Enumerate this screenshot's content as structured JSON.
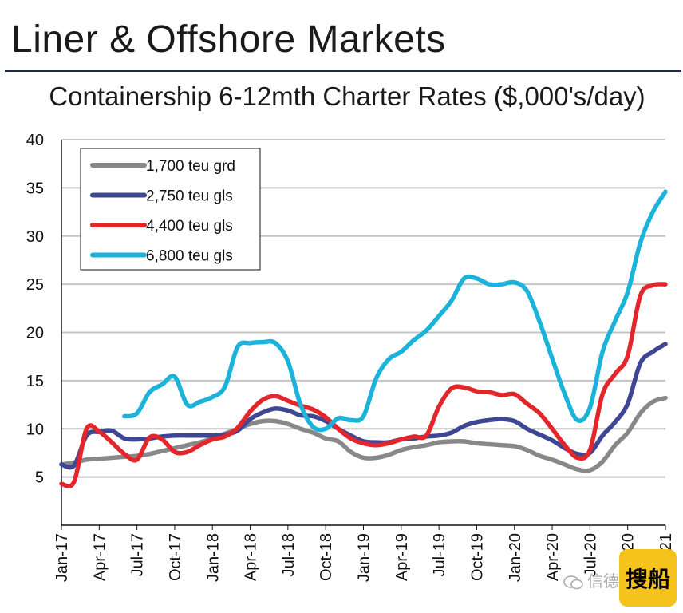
{
  "header": {
    "title": "Liner & Offshore Markets"
  },
  "chart_data": {
    "type": "line",
    "title": "Containership 6-12mth Charter Rates ($,000's/day)",
    "xlabel": "",
    "ylabel": "",
    "ylim": [
      0,
      40
    ],
    "yticks": [
      5,
      10,
      15,
      20,
      25,
      30,
      35,
      40
    ],
    "x_range_months": [
      "Jan-17",
      "Jan-21"
    ],
    "xtick_labels": [
      "Jan-17",
      "Apr-17",
      "Jul-17",
      "Oct-17",
      "Jan-18",
      "Apr-18",
      "Jul-18",
      "Oct-18",
      "Jan-19",
      "Apr-19",
      "Jul-19",
      "Oct-19",
      "Jan-20",
      "Apr-20",
      "Jul-20",
      "Oct-20",
      "Jan-21"
    ],
    "grid": true,
    "legend_position": "top-left",
    "series": [
      {
        "name": "1,700 teu grd",
        "color": "#888888",
        "points": [
          [
            "Jan-17",
            6.3
          ],
          [
            "Feb-17",
            6.5
          ],
          [
            "Mar-17",
            6.8
          ],
          [
            "Apr-17",
            6.9
          ],
          [
            "May-17",
            7.0
          ],
          [
            "Jun-17",
            7.1
          ],
          [
            "Jul-17",
            7.2
          ],
          [
            "Aug-17",
            7.4
          ],
          [
            "Sep-17",
            7.7
          ],
          [
            "Oct-17",
            8.0
          ],
          [
            "Nov-17",
            8.3
          ],
          [
            "Dec-17",
            8.6
          ],
          [
            "Jan-18",
            9.0
          ],
          [
            "Feb-18",
            9.5
          ],
          [
            "Mar-18",
            10.0
          ],
          [
            "Apr-18",
            10.5
          ],
          [
            "May-18",
            10.8
          ],
          [
            "Jun-18",
            10.8
          ],
          [
            "Jul-18",
            10.5
          ],
          [
            "Aug-18",
            10.0
          ],
          [
            "Sep-18",
            9.6
          ],
          [
            "Oct-18",
            9.0
          ],
          [
            "Nov-18",
            8.7
          ],
          [
            "Dec-18",
            7.6
          ],
          [
            "Jan-19",
            7.0
          ],
          [
            "Feb-19",
            7.0
          ],
          [
            "Mar-19",
            7.3
          ],
          [
            "Apr-19",
            7.8
          ],
          [
            "May-19",
            8.1
          ],
          [
            "Jun-19",
            8.3
          ],
          [
            "Jul-19",
            8.6
          ],
          [
            "Aug-19",
            8.7
          ],
          [
            "Sep-19",
            8.7
          ],
          [
            "Oct-19",
            8.5
          ],
          [
            "Nov-19",
            8.4
          ],
          [
            "Dec-19",
            8.3
          ],
          [
            "Jan-20",
            8.2
          ],
          [
            "Feb-20",
            7.8
          ],
          [
            "Mar-20",
            7.2
          ],
          [
            "Apr-20",
            6.8
          ],
          [
            "May-20",
            6.3
          ],
          [
            "Jun-20",
            5.8
          ],
          [
            "Jul-20",
            5.7
          ],
          [
            "Aug-20",
            6.6
          ],
          [
            "Sep-20",
            8.3
          ],
          [
            "Oct-20",
            9.6
          ],
          [
            "Nov-20",
            11.6
          ],
          [
            "Dec-20",
            12.8
          ],
          [
            "Jan-21",
            13.2
          ]
        ]
      },
      {
        "name": "2,750 teu gls",
        "color": "#3d4794",
        "points": [
          [
            "Jan-17",
            6.3
          ],
          [
            "Feb-17",
            6.2
          ],
          [
            "Mar-17",
            9.3
          ],
          [
            "Apr-17",
            9.7
          ],
          [
            "May-17",
            9.8
          ],
          [
            "Jun-17",
            9.0
          ],
          [
            "Jul-17",
            8.9
          ],
          [
            "Aug-17",
            9.0
          ],
          [
            "Sep-17",
            9.2
          ],
          [
            "Oct-17",
            9.3
          ],
          [
            "Nov-17",
            9.3
          ],
          [
            "Dec-17",
            9.3
          ],
          [
            "Jan-18",
            9.3
          ],
          [
            "Feb-18",
            9.4
          ],
          [
            "Mar-18",
            9.8
          ],
          [
            "Apr-18",
            11.0
          ],
          [
            "May-18",
            11.7
          ],
          [
            "Jun-18",
            12.1
          ],
          [
            "Jul-18",
            11.9
          ],
          [
            "Aug-18",
            11.4
          ],
          [
            "Sep-18",
            11.3
          ],
          [
            "Oct-18",
            10.8
          ],
          [
            "Nov-18",
            10.0
          ],
          [
            "Dec-18",
            9.3
          ],
          [
            "Jan-19",
            8.7
          ],
          [
            "Feb-19",
            8.6
          ],
          [
            "Mar-19",
            8.6
          ],
          [
            "Apr-19",
            8.9
          ],
          [
            "May-19",
            9.0
          ],
          [
            "Jun-19",
            9.2
          ],
          [
            "Jul-19",
            9.3
          ],
          [
            "Aug-19",
            9.6
          ],
          [
            "Sep-19",
            10.3
          ],
          [
            "Oct-19",
            10.7
          ],
          [
            "Nov-19",
            10.9
          ],
          [
            "Dec-19",
            11.0
          ],
          [
            "Jan-20",
            10.8
          ],
          [
            "Feb-20",
            10.0
          ],
          [
            "Mar-20",
            9.4
          ],
          [
            "Apr-20",
            8.8
          ],
          [
            "May-20",
            8.0
          ],
          [
            "Jun-20",
            7.4
          ],
          [
            "Jul-20",
            7.5
          ],
          [
            "Aug-20",
            9.3
          ],
          [
            "Sep-20",
            10.7
          ],
          [
            "Oct-20",
            12.6
          ],
          [
            "Nov-20",
            16.8
          ],
          [
            "Dec-20",
            18.0
          ],
          [
            "Jan-21",
            18.8
          ]
        ]
      },
      {
        "name": "4,400 teu gls",
        "color": "#e3262b",
        "points": [
          [
            "Jan-17",
            4.3
          ],
          [
            "Feb-17",
            4.5
          ],
          [
            "Mar-17",
            10.0
          ],
          [
            "Apr-17",
            9.7
          ],
          [
            "May-17",
            8.6
          ],
          [
            "Jun-17",
            7.4
          ],
          [
            "Jul-17",
            6.8
          ],
          [
            "Aug-17",
            9.1
          ],
          [
            "Sep-17",
            8.9
          ],
          [
            "Oct-17",
            7.6
          ],
          [
            "Nov-17",
            7.6
          ],
          [
            "Dec-17",
            8.3
          ],
          [
            "Jan-18",
            8.9
          ],
          [
            "Feb-18",
            9.2
          ],
          [
            "Mar-18",
            10.1
          ],
          [
            "Apr-18",
            11.8
          ],
          [
            "May-18",
            13.0
          ],
          [
            "Jun-18",
            13.4
          ],
          [
            "Jul-18",
            12.9
          ],
          [
            "Aug-18",
            12.4
          ],
          [
            "Sep-18",
            12.0
          ],
          [
            "Oct-18",
            11.2
          ],
          [
            "Nov-18",
            10.0
          ],
          [
            "Dec-18",
            9.0
          ],
          [
            "Jan-19",
            8.5
          ],
          [
            "Feb-19",
            8.3
          ],
          [
            "Mar-19",
            8.5
          ],
          [
            "Apr-19",
            8.9
          ],
          [
            "May-19",
            9.2
          ],
          [
            "Jun-19",
            9.3
          ],
          [
            "Jul-19",
            12.3
          ],
          [
            "Aug-19",
            14.2
          ],
          [
            "Sep-19",
            14.3
          ],
          [
            "Oct-19",
            13.9
          ],
          [
            "Nov-19",
            13.8
          ],
          [
            "Dec-19",
            13.5
          ],
          [
            "Jan-20",
            13.6
          ],
          [
            "Feb-20",
            12.6
          ],
          [
            "Mar-20",
            11.6
          ],
          [
            "Apr-20",
            10.0
          ],
          [
            "May-20",
            8.3
          ],
          [
            "Jun-20",
            7.0
          ],
          [
            "Jul-20",
            7.8
          ],
          [
            "Aug-20",
            13.6
          ],
          [
            "Sep-20",
            15.7
          ],
          [
            "Oct-20",
            17.6
          ],
          [
            "Nov-20",
            23.8
          ],
          [
            "Dec-20",
            24.9
          ],
          [
            "Jan-21",
            25.0
          ]
        ]
      },
      {
        "name": "6,800 teu gls",
        "color": "#1bb3d9",
        "points": [
          [
            "Jun-17",
            11.3
          ],
          [
            "Jul-17",
            11.6
          ],
          [
            "Aug-17",
            13.8
          ],
          [
            "Sep-17",
            14.6
          ],
          [
            "Oct-17",
            15.4
          ],
          [
            "Nov-17",
            12.5
          ],
          [
            "Dec-17",
            12.8
          ],
          [
            "Jan-18",
            13.3
          ],
          [
            "Feb-18",
            14.4
          ],
          [
            "Mar-18",
            18.5
          ],
          [
            "Apr-18",
            18.9
          ],
          [
            "May-18",
            19.0
          ],
          [
            "Jun-18",
            18.9
          ],
          [
            "Jul-18",
            17.0
          ],
          [
            "Aug-18",
            12.5
          ],
          [
            "Sep-18",
            10.2
          ],
          [
            "Oct-18",
            10.0
          ],
          [
            "Nov-18",
            11.1
          ],
          [
            "Dec-18",
            10.9
          ],
          [
            "Jan-19",
            11.3
          ],
          [
            "Feb-19",
            15.2
          ],
          [
            "Mar-19",
            17.2
          ],
          [
            "Apr-19",
            18.0
          ],
          [
            "May-19",
            19.2
          ],
          [
            "Jun-19",
            20.2
          ],
          [
            "Jul-19",
            21.7
          ],
          [
            "Aug-19",
            23.3
          ],
          [
            "Sep-19",
            25.6
          ],
          [
            "Oct-19",
            25.6
          ],
          [
            "Nov-19",
            25.0
          ],
          [
            "Dec-19",
            25.0
          ],
          [
            "Jan-20",
            25.2
          ],
          [
            "Feb-20",
            24.3
          ],
          [
            "Mar-20",
            21.1
          ],
          [
            "Apr-20",
            17.3
          ],
          [
            "May-20",
            13.6
          ],
          [
            "Jun-20",
            10.9
          ],
          [
            "Jul-20",
            12.2
          ],
          [
            "Aug-20",
            18.0
          ],
          [
            "Sep-20",
            21.2
          ],
          [
            "Oct-20",
            24.2
          ],
          [
            "Nov-20",
            29.3
          ],
          [
            "Dec-20",
            32.5
          ],
          [
            "Jan-21",
            34.6
          ]
        ]
      }
    ]
  },
  "watermark": {
    "text": "信德",
    "badge_text": "搜船"
  }
}
